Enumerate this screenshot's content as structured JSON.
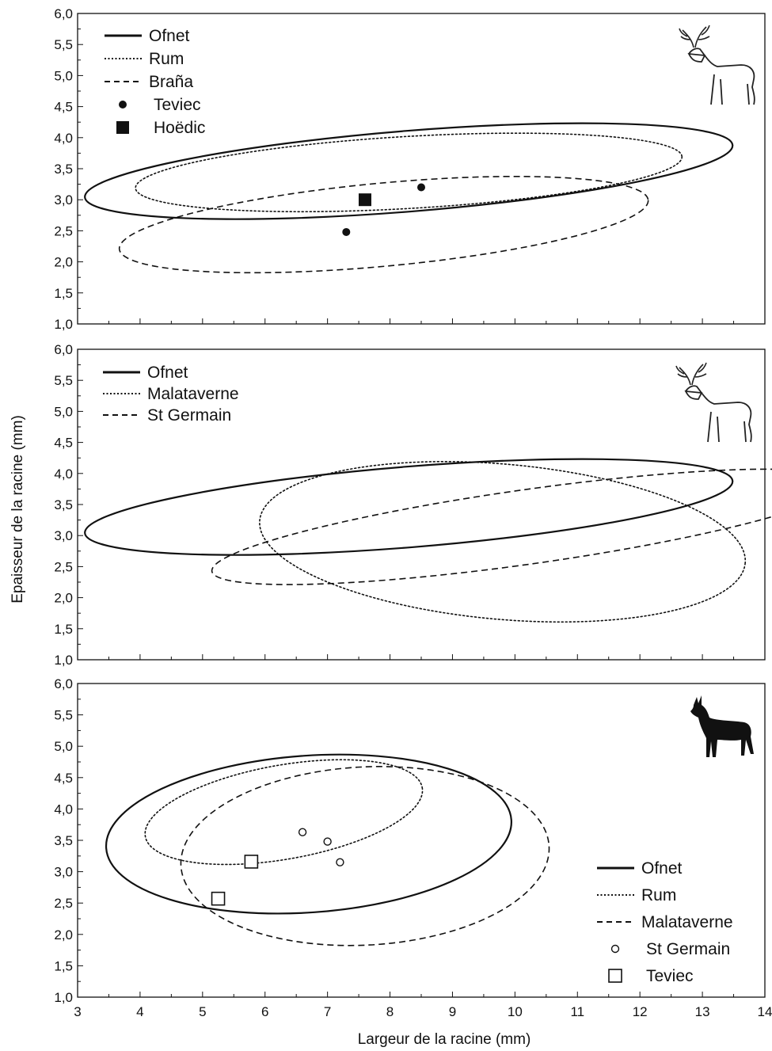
{
  "chart_data": [
    {
      "type": "scatter",
      "panel": "top",
      "animal_icon": "red-deer-stag-outline-icon",
      "xlim": [
        3,
        14
      ],
      "ylim": [
        1.0,
        6.0
      ],
      "yticks": [
        "1,0",
        "1,5",
        "2,0",
        "2,5",
        "3,0",
        "3,5",
        "4,0",
        "4,5",
        "5,0",
        "5,5",
        "6,0"
      ],
      "legend_position": "top-left",
      "legend": [
        {
          "label": "Ofnet",
          "style": "solid"
        },
        {
          "label": "Rum",
          "style": "dotted"
        },
        {
          "label": "Braña",
          "style": "dashed"
        },
        {
          "label": "Teviec",
          "style": "filled-circle"
        },
        {
          "label": "Hoëdic",
          "style": "filled-square"
        }
      ],
      "ellipses": [
        {
          "name": "Ofnet",
          "style": "solid",
          "cx": 8.3,
          "cy": 3.46,
          "rx": 5.2,
          "ry": 0.65,
          "angle_deg": 4.6
        },
        {
          "name": "Rum",
          "style": "dotted",
          "cx": 8.3,
          "cy": 3.44,
          "rx": 4.38,
          "ry": 0.58,
          "angle_deg": 3.3
        },
        {
          "name": "Braña",
          "style": "dashed",
          "cx": 7.9,
          "cy": 2.6,
          "rx": 4.25,
          "ry": 0.67,
          "angle_deg": 5.3
        }
      ],
      "points": [
        {
          "series": "Teviec",
          "marker": "filled-circle",
          "x": 7.3,
          "y": 2.48
        },
        {
          "series": "Teviec",
          "marker": "filled-circle",
          "x": 8.5,
          "y": 3.2
        },
        {
          "series": "Hoëdic",
          "marker": "filled-square",
          "x": 7.6,
          "y": 3.0
        }
      ]
    },
    {
      "type": "scatter",
      "panel": "middle",
      "animal_icon": "red-deer-stag-outline-icon",
      "xlim": [
        3,
        14
      ],
      "ylim": [
        1.0,
        6.0
      ],
      "yticks": [
        "1,0",
        "1,5",
        "2,0",
        "2,5",
        "3,0",
        "3,5",
        "4,0",
        "4,5",
        "5,0",
        "5,5",
        "6,0"
      ],
      "ylabel": "Epaisseur de la racine (mm)",
      "legend_position": "top-left",
      "legend": [
        {
          "label": "Ofnet",
          "style": "solid"
        },
        {
          "label": "Malataverne",
          "style": "dotted"
        },
        {
          "label": "St Germain",
          "style": "dashed"
        }
      ],
      "ellipses": [
        {
          "name": "Ofnet",
          "style": "solid",
          "cx": 8.3,
          "cy": 3.46,
          "rx": 5.2,
          "ry": 0.65,
          "angle_deg": 4.6
        },
        {
          "name": "Malataverne",
          "style": "dotted",
          "cx": 9.8,
          "cy": 2.9,
          "rx": 3.9,
          "ry": 1.25,
          "angle_deg": -5.0
        },
        {
          "name": "St Germain",
          "style": "dashed",
          "cx": 10.2,
          "cy": 3.14,
          "rx": 5.1,
          "ry": 0.6,
          "angle_deg": 8.0
        }
      ],
      "points": []
    },
    {
      "type": "scatter",
      "panel": "bottom",
      "animal_icon": "roe-deer-silhouette-icon",
      "xlim": [
        3,
        14
      ],
      "ylim": [
        1.0,
        6.0
      ],
      "xticks": [
        "3",
        "4",
        "5",
        "6",
        "7",
        "8",
        "9",
        "10",
        "11",
        "12",
        "13",
        "14"
      ],
      "yticks": [
        "1,0",
        "1,5",
        "2,0",
        "2,5",
        "3,0",
        "3,5",
        "4,0",
        "4,5",
        "5,0",
        "5,5",
        "6,0"
      ],
      "xlabel": "Largeur de la racine (mm)",
      "legend_position": "bottom-right",
      "legend": [
        {
          "label": "Ofnet",
          "style": "solid"
        },
        {
          "label": "Rum",
          "style": "dotted"
        },
        {
          "label": "Malataverne",
          "style": "dashed"
        },
        {
          "label": "St Germain",
          "style": "open-circle"
        },
        {
          "label": "Teviec",
          "style": "open-square"
        }
      ],
      "ellipses": [
        {
          "name": "Ofnet",
          "style": "solid",
          "cx": 6.7,
          "cy": 3.6,
          "rx": 3.25,
          "ry": 1.25,
          "angle_deg": 4.0
        },
        {
          "name": "Rum",
          "style": "dotted",
          "cx": 6.3,
          "cy": 3.95,
          "rx": 2.25,
          "ry": 0.75,
          "angle_deg": 10.0
        },
        {
          "name": "Malataverne",
          "style": "dashed",
          "cx": 7.6,
          "cy": 3.25,
          "rx": 2.95,
          "ry": 1.42,
          "angle_deg": 3.0
        }
      ],
      "points": [
        {
          "series": "St Germain",
          "marker": "open-circle",
          "x": 6.6,
          "y": 3.63
        },
        {
          "series": "St Germain",
          "marker": "open-circle",
          "x": 7.0,
          "y": 3.48
        },
        {
          "series": "St Germain",
          "marker": "open-circle",
          "x": 7.2,
          "y": 3.15
        },
        {
          "series": "Teviec",
          "marker": "open-square",
          "x": 5.25,
          "y": 2.57
        },
        {
          "series": "Teviec",
          "marker": "open-square",
          "x": 5.78,
          "y": 3.16
        }
      ]
    }
  ]
}
